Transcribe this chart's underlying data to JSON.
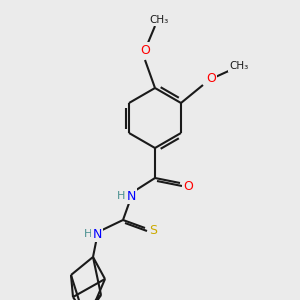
{
  "bg_color": "#ebebeb",
  "bond_color": "#1a1a1a",
  "atom_colors": {
    "O": "#ff0000",
    "N": "#0000ff",
    "S": "#ccaa00",
    "H": "#4a9090",
    "C": "#1a1a1a"
  },
  "font_size_atom": 9,
  "font_size_label": 8,
  "lw": 1.5
}
